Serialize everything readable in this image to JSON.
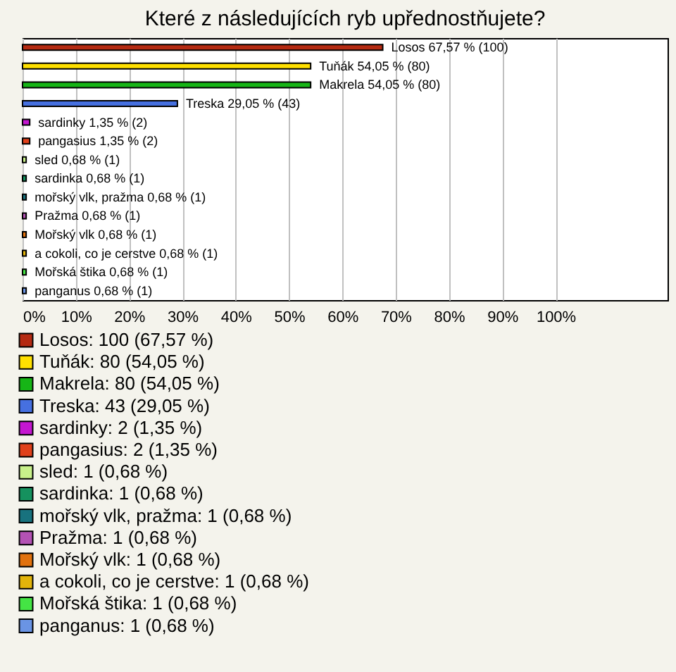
{
  "chart_data": {
    "type": "bar",
    "orientation": "horizontal",
    "title": "Které z následujících ryb upřednostňujete?",
    "categories": [
      null,
      null,
      null,
      null,
      null,
      null,
      null,
      null,
      null,
      null,
      null,
      null,
      null,
      null
    ],
    "series": [
      {
        "name": "Losos: 100 (67,57 %)",
        "color": "#b52a12",
        "values": [
          67.57,
          null,
          null,
          null,
          null,
          null,
          null,
          null,
          null,
          null,
          null,
          null,
          null,
          null
        ],
        "value_labels": [
          "Losos 67,57 % (100)",
          null,
          null,
          null,
          null,
          null,
          null,
          null,
          null,
          null,
          null,
          null,
          null,
          null
        ]
      },
      {
        "name": "Tuňák: 80 (54,05 %)",
        "color": "#ffe000",
        "values": [
          null,
          54.05,
          null,
          null,
          null,
          null,
          null,
          null,
          null,
          null,
          null,
          null,
          null,
          null
        ],
        "value_labels": [
          null,
          "Tuňák 54,05 % (80)",
          null,
          null,
          null,
          null,
          null,
          null,
          null,
          null,
          null,
          null,
          null,
          null
        ]
      },
      {
        "name": "Makrela: 80 (54,05 %)",
        "color": "#16b516",
        "values": [
          null,
          null,
          54.05,
          null,
          null,
          null,
          null,
          null,
          null,
          null,
          null,
          null,
          null,
          null
        ],
        "value_labels": [
          null,
          null,
          "Makrela 54,05 % (80)",
          null,
          null,
          null,
          null,
          null,
          null,
          null,
          null,
          null,
          null,
          null
        ]
      },
      {
        "name": "Treska: 43 (29,05 %)",
        "color": "#4670e0",
        "values": [
          null,
          null,
          null,
          29.05,
          null,
          null,
          null,
          null,
          null,
          null,
          null,
          null,
          null,
          null
        ],
        "value_labels": [
          null,
          null,
          null,
          "Treska 29,05 % (43)",
          null,
          null,
          null,
          null,
          null,
          null,
          null,
          null,
          null,
          null
        ]
      },
      {
        "name": "sardinky: 2 (1,35 %)",
        "color": "#c416d0",
        "values": [
          null,
          null,
          null,
          null,
          1.35,
          null,
          null,
          null,
          null,
          null,
          null,
          null,
          null,
          null
        ],
        "value_labels": [
          null,
          null,
          null,
          null,
          "sardinky 1,35 % (2)",
          null,
          null,
          null,
          null,
          null,
          null,
          null,
          null,
          null
        ]
      },
      {
        "name": "pangasius: 2 (1,35 %)",
        "color": "#e0401a",
        "values": [
          null,
          null,
          null,
          null,
          null,
          1.35,
          null,
          null,
          null,
          null,
          null,
          null,
          null,
          null
        ],
        "value_labels": [
          null,
          null,
          null,
          null,
          null,
          "pangasius 1,35 % (2)",
          null,
          null,
          null,
          null,
          null,
          null,
          null,
          null
        ]
      },
      {
        "name": "sled: 1 (0,68 %)",
        "color": "#c8f08a",
        "values": [
          null,
          null,
          null,
          null,
          null,
          null,
          0.68,
          null,
          null,
          null,
          null,
          null,
          null,
          null
        ],
        "value_labels": [
          null,
          null,
          null,
          null,
          null,
          null,
          "sled 0,68 % (1)",
          null,
          null,
          null,
          null,
          null,
          null,
          null
        ]
      },
      {
        "name": "sardinka: 1 (0,68 %)",
        "color": "#15915e",
        "values": [
          null,
          null,
          null,
          null,
          null,
          null,
          null,
          0.68,
          null,
          null,
          null,
          null,
          null,
          null
        ],
        "value_labels": [
          null,
          null,
          null,
          null,
          null,
          null,
          null,
          "sardinka 0,68 % (1)",
          null,
          null,
          null,
          null,
          null,
          null
        ]
      },
      {
        "name": "mořský vlk, pražma: 1 (0,68 %)",
        "color": "#18727e",
        "values": [
          null,
          null,
          null,
          null,
          null,
          null,
          null,
          null,
          0.68,
          null,
          null,
          null,
          null,
          null
        ],
        "value_labels": [
          null,
          null,
          null,
          null,
          null,
          null,
          null,
          null,
          "mořský vlk, pražma 0,68 % (1)",
          null,
          null,
          null,
          null,
          null
        ]
      },
      {
        "name": "Pražma: 1 (0,68 %)",
        "color": "#b452b4",
        "values": [
          null,
          null,
          null,
          null,
          null,
          null,
          null,
          null,
          null,
          0.68,
          null,
          null,
          null,
          null
        ],
        "value_labels": [
          null,
          null,
          null,
          null,
          null,
          null,
          null,
          null,
          null,
          "Pražma 0,68 % (1)",
          null,
          null,
          null,
          null
        ]
      },
      {
        "name": "Mořský vlk: 1 (0,68 %)",
        "color": "#e2720e",
        "values": [
          null,
          null,
          null,
          null,
          null,
          null,
          null,
          null,
          null,
          null,
          0.68,
          null,
          null,
          null
        ],
        "value_labels": [
          null,
          null,
          null,
          null,
          null,
          null,
          null,
          null,
          null,
          null,
          "Mořský vlk 0,68 % (1)",
          null,
          null,
          null
        ]
      },
      {
        "name": "a cokoli, co je cerstve: 1 (0,68 %)",
        "color": "#e2b40a",
        "values": [
          null,
          null,
          null,
          null,
          null,
          null,
          null,
          null,
          null,
          null,
          null,
          0.68,
          null,
          null
        ],
        "value_labels": [
          null,
          null,
          null,
          null,
          null,
          null,
          null,
          null,
          null,
          null,
          null,
          "a cokoli, co je cerstve 0,68 % (1)",
          null,
          null
        ]
      },
      {
        "name": "Mořská štika: 1 (0,68 %)",
        "color": "#44e444",
        "values": [
          null,
          null,
          null,
          null,
          null,
          null,
          null,
          null,
          null,
          null,
          null,
          null,
          0.68,
          null
        ],
        "value_labels": [
          null,
          null,
          null,
          null,
          null,
          null,
          null,
          null,
          null,
          null,
          null,
          null,
          "Mořská štika 0,68 % (1)",
          null
        ]
      },
      {
        "name": "panganus: 1 (0,68 %)",
        "color": "#6a94e4",
        "values": [
          null,
          null,
          null,
          null,
          null,
          null,
          null,
          null,
          null,
          null,
          null,
          null,
          null,
          0.68
        ],
        "value_labels": [
          null,
          null,
          null,
          null,
          null,
          null,
          null,
          null,
          null,
          null,
          null,
          null,
          null,
          "panganus 0,68 % (1)"
        ]
      }
    ],
    "xlim": [
      0,
      121
    ],
    "xticks": [
      {
        "value": 0,
        "label": "0%"
      },
      {
        "value": 10,
        "label": "10%"
      },
      {
        "value": 20,
        "label": "20%"
      },
      {
        "value": 30,
        "label": "30%"
      },
      {
        "value": 40,
        "label": "40%"
      },
      {
        "value": 50,
        "label": "50%"
      },
      {
        "value": 60,
        "label": "60%"
      },
      {
        "value": 70,
        "label": "70%"
      },
      {
        "value": 80,
        "label": "80%"
      },
      {
        "value": 90,
        "label": "90%"
      },
      {
        "value": 100,
        "label": "100%"
      }
    ],
    "grid": "x",
    "legend": "bottom",
    "tick_labels": "x"
  }
}
